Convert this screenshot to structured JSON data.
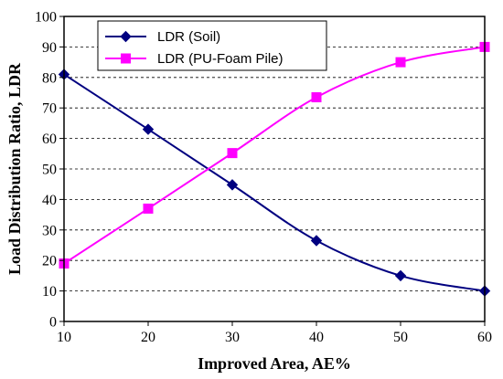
{
  "chart_data": {
    "type": "line",
    "xlabel": "Improved Area, AE%",
    "ylabel": "Load Distribution Ratio, LDR",
    "x": [
      10,
      20,
      30,
      40,
      50,
      60
    ],
    "xlim": [
      10,
      60
    ],
    "ylim": [
      0,
      100
    ],
    "x_ticks": [
      10,
      20,
      30,
      40,
      50,
      60
    ],
    "y_ticks": [
      0,
      10,
      20,
      30,
      40,
      50,
      60,
      70,
      80,
      90,
      100
    ],
    "grid": "horizontal dashed",
    "legend_position": "top-left",
    "series": [
      {
        "name": "LDR (Soil)",
        "values": [
          81,
          63,
          44.8,
          26.5,
          15,
          10
        ],
        "color": "#000080",
        "marker": "diamond"
      },
      {
        "name": "LDR (PU-Foam Pile)",
        "values": [
          19,
          37,
          55.2,
          73.5,
          85,
          90
        ],
        "color": "#FF00FF",
        "marker": "square"
      }
    ]
  }
}
